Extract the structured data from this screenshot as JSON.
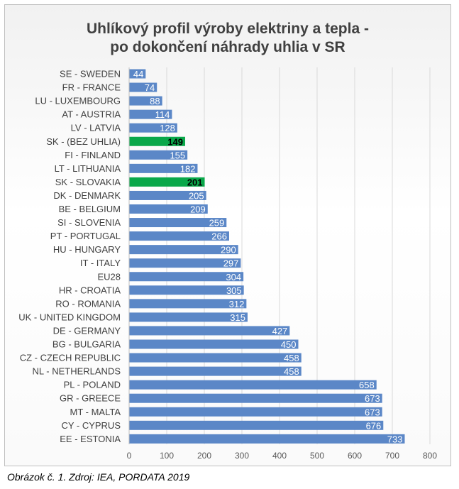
{
  "chart_data": {
    "type": "bar",
    "orientation": "horizontal",
    "title_lines": [
      "Uhlíkový profil výroby elektriny a tepla -",
      "po dokončení náhrady uhlia v SR"
    ],
    "categories": [
      "SE - SWEDEN",
      "FR - FRANCE",
      "LU - LUXEMBOURG",
      "AT - AUSTRIA",
      "LV - LATVIA",
      "SK - (BEZ UHLIA)",
      "FI - FINLAND",
      "LT - LITHUANIA",
      "SK - SLOVAKIA",
      "DK - DENMARK",
      "BE - BELGIUM",
      "SI - SLOVENIA",
      "PT - PORTUGAL",
      "HU - HUNGARY",
      "IT - ITALY",
      "EU28",
      "HR - CROATIA",
      "RO - ROMANIA",
      "UK - UNITED KINGDOM",
      "DE - GERMANY",
      "BG - BULGARIA",
      "CZ - CZECH REPUBLIC",
      "NL - NETHERLANDS",
      "PL - POLAND",
      "GR - GREECE",
      "MT - MALTA",
      "CY - CYPRUS",
      "EE - ESTONIA"
    ],
    "values": [
      44,
      74,
      88,
      114,
      128,
      149,
      155,
      182,
      201,
      205,
      209,
      259,
      266,
      290,
      297,
      304,
      305,
      312,
      315,
      427,
      450,
      458,
      458,
      658,
      673,
      673,
      676,
      733
    ],
    "highlight": [
      "SK - (BEZ UHLIA)",
      "SK - SLOVAKIA"
    ],
    "xlim": [
      0,
      800
    ],
    "xticks": [
      0,
      100,
      200,
      300,
      400,
      500,
      600,
      700,
      800
    ],
    "grid": true,
    "colors": {
      "bar": "#5b87c7",
      "highlight": "#0aa84a",
      "label_default": "#ffffff",
      "label_highlight": "#000000",
      "grid": "#d9d9d9",
      "text": "#404040"
    }
  },
  "caption": "Obrázok č. 1. Zdroj: IEA, PORDATA 2019"
}
